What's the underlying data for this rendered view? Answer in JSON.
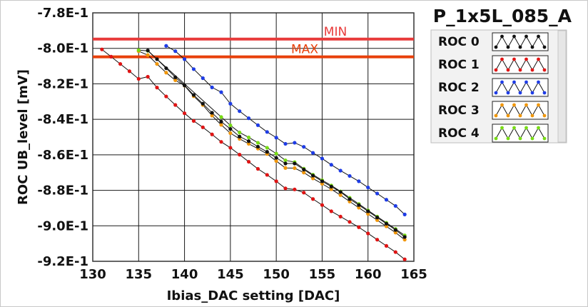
{
  "chart_data": {
    "type": "line",
    "title": "P_1x5L_085_A",
    "xlabel": "Ibias_DAC setting [DAC]",
    "ylabel": "ROC UB_level [mV]",
    "xlim": [
      130,
      165
    ],
    "ylim": [
      -0.92,
      -0.78
    ],
    "x_ticks": [
      130,
      135,
      140,
      145,
      150,
      155,
      160,
      165
    ],
    "x_tick_labels": [
      "130",
      "135",
      "140",
      "145",
      "150",
      "155",
      "160",
      "165"
    ],
    "y_ticks": [
      -0.78,
      -0.8,
      -0.82,
      -0.84,
      -0.86,
      -0.88,
      -0.9,
      -0.92
    ],
    "y_tick_labels": [
      "-7.8E-1",
      "-8.0E-1",
      "-8.2E-1",
      "-8.4E-1",
      "-8.6E-1",
      "-8.8E-1",
      "-9.0E-1",
      "-9.2E-1"
    ],
    "grid": true,
    "legend_position": "right",
    "limits": [
      {
        "name": "MIN",
        "y": -0.7948,
        "color": "#e83a3a"
      },
      {
        "name": "MAX",
        "y": -0.8048,
        "color": "#e8400a"
      }
    ],
    "series": [
      {
        "name": "ROC 0",
        "color": "#111111",
        "x": [
          136,
          137,
          138,
          139,
          140,
          141,
          142,
          143,
          144,
          145,
          146,
          147,
          148,
          149,
          150,
          151,
          152,
          153,
          154,
          155,
          156,
          157,
          158,
          159,
          160,
          161,
          162,
          163,
          164
        ],
        "y": [
          -0.8012,
          -0.8061,
          -0.8112,
          -0.8163,
          -0.8209,
          -0.8263,
          -0.8312,
          -0.8363,
          -0.8413,
          -0.8454,
          -0.8497,
          -0.8523,
          -0.8554,
          -0.8583,
          -0.8617,
          -0.8649,
          -0.8649,
          -0.8683,
          -0.8717,
          -0.8749,
          -0.8779,
          -0.8809,
          -0.8849,
          -0.8883,
          -0.8918,
          -0.8953,
          -0.8988,
          -0.9023,
          -0.9063
        ]
      },
      {
        "name": "ROC 1",
        "color": "#e01414",
        "x": [
          131,
          132,
          133,
          134,
          135,
          136,
          137,
          138,
          139,
          140,
          141,
          142,
          143,
          144,
          145,
          146,
          147,
          148,
          149,
          150,
          151,
          152,
          153,
          154,
          155,
          156,
          157,
          158,
          159,
          160,
          161,
          162,
          163,
          164
        ],
        "y": [
          -0.8006,
          -0.8047,
          -0.8088,
          -0.8129,
          -0.8172,
          -0.816,
          -0.8221,
          -0.8271,
          -0.8319,
          -0.8366,
          -0.8409,
          -0.8445,
          -0.8485,
          -0.8527,
          -0.856,
          -0.8599,
          -0.8639,
          -0.8679,
          -0.8713,
          -0.8749,
          -0.8789,
          -0.8795,
          -0.8813,
          -0.8849,
          -0.8883,
          -0.8918,
          -0.8948,
          -0.8978,
          -0.9008,
          -0.9043,
          -0.9078,
          -0.9113,
          -0.9148,
          -0.9189
        ]
      },
      {
        "name": "ROC 2",
        "color": "#1e3ce6",
        "x": [
          138,
          139,
          140,
          141,
          142,
          143,
          144,
          145,
          146,
          147,
          148,
          149,
          150,
          151,
          152,
          153,
          154,
          155,
          156,
          157,
          158,
          159,
          160,
          161,
          162,
          163,
          164
        ],
        "y": [
          -0.7986,
          -0.8016,
          -0.8061,
          -0.8117,
          -0.8168,
          -0.822,
          -0.8247,
          -0.8312,
          -0.8354,
          -0.8394,
          -0.8433,
          -0.8471,
          -0.8503,
          -0.8538,
          -0.8532,
          -0.8555,
          -0.8589,
          -0.8621,
          -0.8656,
          -0.8689,
          -0.8719,
          -0.8749,
          -0.8784,
          -0.8818,
          -0.8853,
          -0.8888,
          -0.8936
        ]
      },
      {
        "name": "ROC 3",
        "color": "#f0960a",
        "x": [
          135,
          136,
          137,
          138,
          139,
          140,
          141,
          142,
          143,
          144,
          145,
          146,
          147,
          148,
          149,
          150,
          151,
          152,
          153,
          154,
          155,
          156,
          157,
          158,
          159,
          160,
          161,
          162,
          163,
          164
        ],
        "y": [
          -0.8016,
          -0.8038,
          -0.8088,
          -0.8137,
          -0.818,
          -0.821,
          -0.827,
          -0.8319,
          -0.8379,
          -0.8431,
          -0.8478,
          -0.851,
          -0.8538,
          -0.8565,
          -0.8595,
          -0.8635,
          -0.8674,
          -0.8675,
          -0.87,
          -0.8733,
          -0.8763,
          -0.8794,
          -0.8827,
          -0.8863,
          -0.8898,
          -0.8933,
          -0.8968,
          -0.9003,
          -0.9038,
          -0.9078
        ]
      },
      {
        "name": "ROC 4",
        "color": "#78dc14",
        "x": [
          135,
          136,
          144,
          145,
          146,
          147,
          148,
          149,
          150,
          151,
          152,
          153,
          154,
          155,
          156,
          157,
          158,
          159,
          160,
          161,
          162,
          163,
          164
        ],
        "y": [
          -0.801,
          -0.8014,
          -0.8387,
          -0.8434,
          -0.8474,
          -0.8502,
          -0.8532,
          -0.856,
          -0.8593,
          -0.8631,
          -0.8641,
          -0.8678,
          -0.8712,
          -0.8743,
          -0.8773,
          -0.8806,
          -0.8842,
          -0.8877,
          -0.8913,
          -0.8948,
          -0.8983,
          -0.9018,
          -0.9054
        ]
      }
    ]
  }
}
